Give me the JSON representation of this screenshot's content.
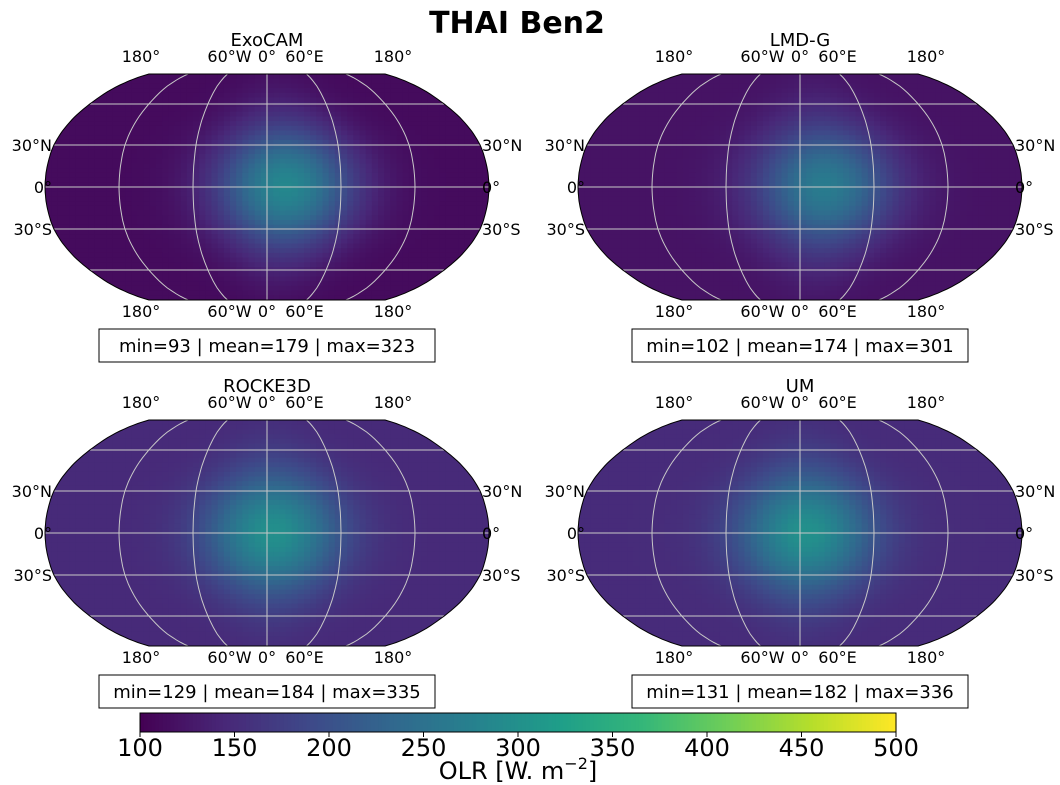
{
  "chart_data": {
    "type": "heatmap",
    "title": "THAI Ben2",
    "colormap": "viridis",
    "colors": {
      "viridis": [
        "#440154",
        "#482878",
        "#3e4989",
        "#31688e",
        "#26828e",
        "#1f9e89",
        "#35b779",
        "#6ece58",
        "#b5de2b",
        "#fde725"
      ],
      "graticule": "#c8c8c8"
    },
    "colorbar": {
      "label": "OLR [W. m",
      "label_superscript": "−2",
      "label_suffix": "]",
      "range": [
        100,
        500
      ],
      "ticks": [
        "100",
        "150",
        "200",
        "250",
        "300",
        "350",
        "400",
        "450",
        "500"
      ]
    },
    "projection": "Robinson",
    "lon_labels": [
      "180°",
      "60°W",
      "0°",
      "60°E",
      "180°"
    ],
    "lat_labels": [
      "30°N",
      "0°",
      "30°S"
    ],
    "panels": [
      {
        "name": "ExoCAM",
        "stats": "min=93 | mean=179 | max=323",
        "min": 93,
        "mean": 179,
        "max": 323,
        "peak_lon": 15
      },
      {
        "name": "LMD-G",
        "stats": "min=102 | mean=174 | max=301",
        "min": 102,
        "mean": 174,
        "max": 301,
        "peak_lon": 20
      },
      {
        "name": "ROCKE3D",
        "stats": "min=129 | mean=184 | max=335",
        "min": 129,
        "mean": 184,
        "max": 335,
        "peak_lon": 5
      },
      {
        "name": "UM",
        "stats": "min=131 | mean=182 | max=336",
        "min": 131,
        "mean": 182,
        "max": 336,
        "peak_lon": 5
      }
    ]
  }
}
